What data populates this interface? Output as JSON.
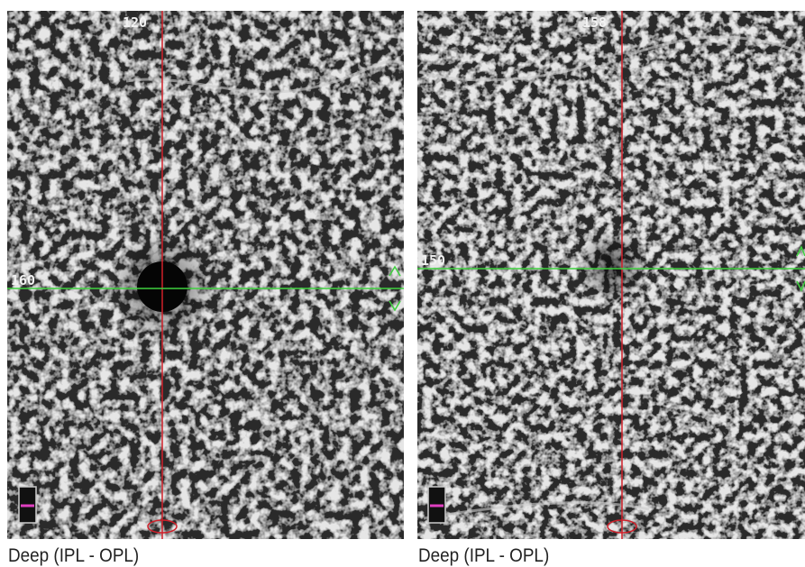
{
  "panels": [
    {
      "top_label": "120",
      "left_label": "160",
      "caption": "Deep (IPL - OPL)"
    },
    {
      "top_label": "158",
      "left_label": "150",
      "caption": "Deep (IPL - OPL)"
    }
  ]
}
